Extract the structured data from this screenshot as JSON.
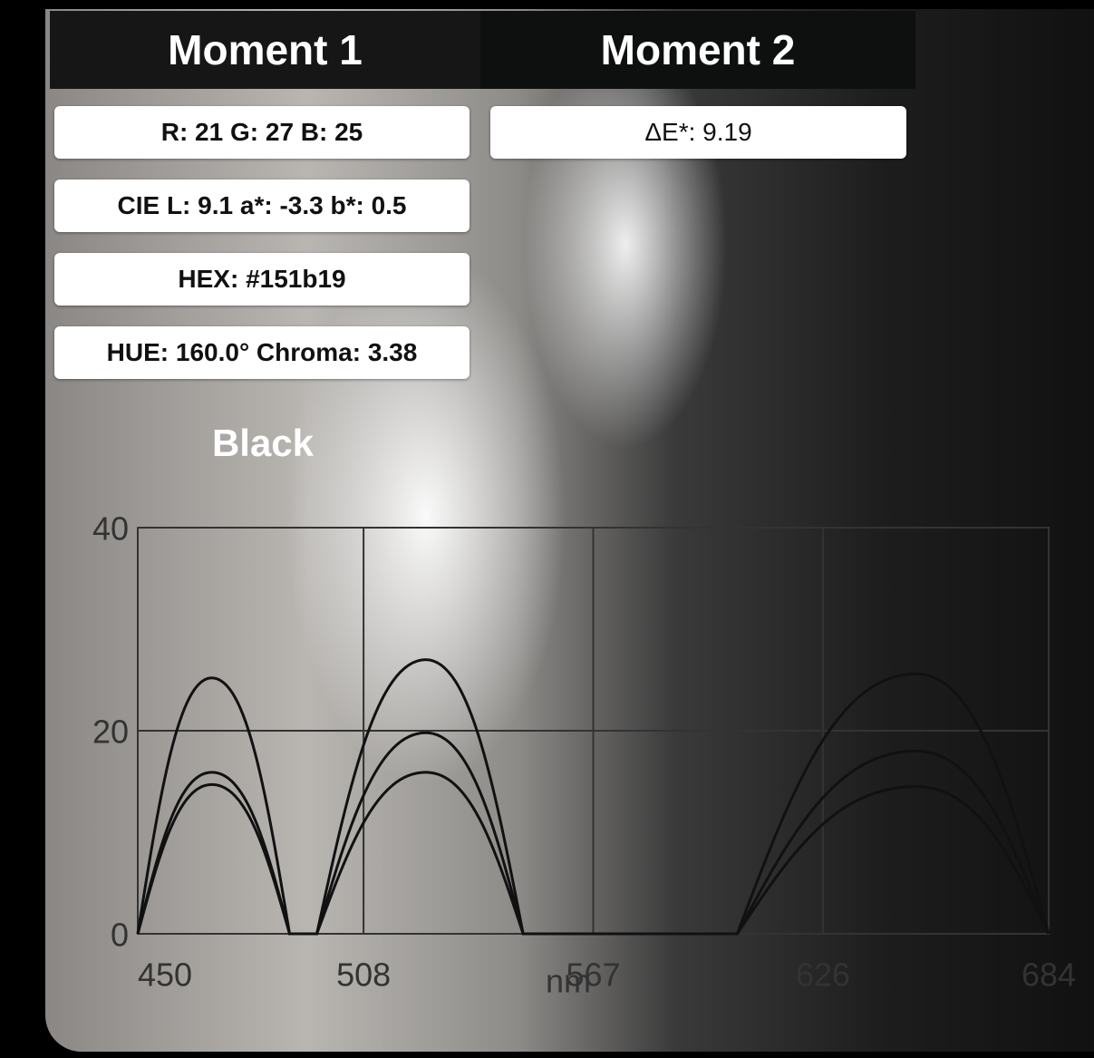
{
  "tabs": [
    "Moment 1",
    "Moment 2"
  ],
  "moment1": {
    "rgb": "R: 21 G: 27 B: 25",
    "lab": "CIE L: 9.1 a*: -3.3 b*: 0.5",
    "hex": "HEX: #151b19",
    "hue": "HUE: 160.0° Chroma: 3.38"
  },
  "moment2": {
    "delta_e": "ΔE*: 9.19"
  },
  "color_name": "Black",
  "chart_data": {
    "type": "line",
    "x_label": "nm",
    "x": [
      450,
      469,
      489,
      496,
      524,
      549,
      604,
      650,
      684
    ],
    "series": [
      {
        "color": "#111111",
        "values": [
          0,
          25.2,
          0,
          0,
          27,
          0,
          0,
          25.6,
          0
        ]
      },
      {
        "color": "#111111",
        "values": [
          0,
          15.9,
          0,
          0,
          19.8,
          0,
          0,
          18,
          0
        ]
      },
      {
        "color": "#111111",
        "values": [
          0,
          14.7,
          0,
          0,
          15.9,
          0,
          0,
          14.5,
          0
        ]
      }
    ],
    "xlim": [
      450,
      684
    ],
    "ylim": [
      0,
      40
    ],
    "xticks": [
      450,
      508,
      567,
      626,
      684
    ],
    "yticks": [
      0,
      20,
      40
    ],
    "grid": true
  }
}
